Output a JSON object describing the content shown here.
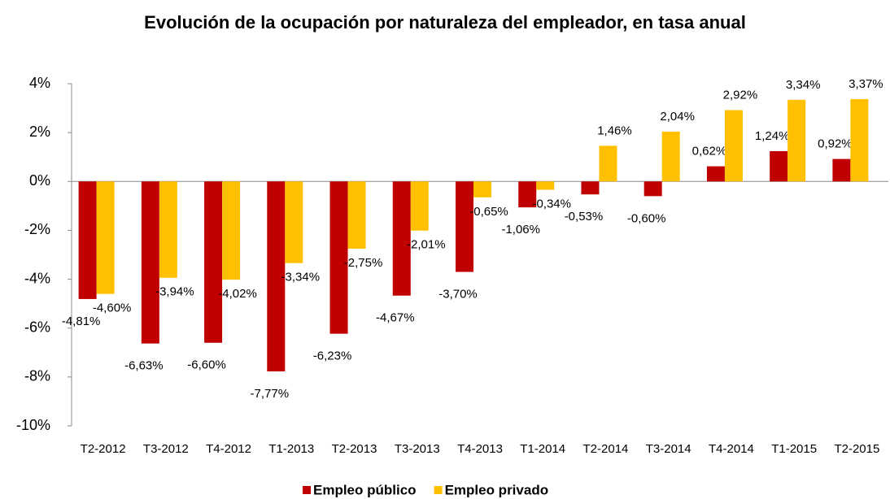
{
  "chart_data": {
    "type": "bar",
    "title": "Evolución de la ocupación por naturaleza del empleador, en tasa anual",
    "categories": [
      "T2-2012",
      "T3-2012",
      "T4-2012",
      "T1-2013",
      "T2-2013",
      "T3-2013",
      "T4-2013",
      "T1-2014",
      "T2-2014",
      "T3-2014",
      "T4-2014",
      "T1-2015",
      "T2-2015"
    ],
    "series": [
      {
        "name": "Empleo público",
        "color": "#c00000",
        "values": [
          -4.81,
          -6.63,
          -6.6,
          -7.77,
          -6.23,
          -4.67,
          -3.7,
          -1.06,
          -0.53,
          -0.6,
          0.62,
          1.24,
          0.92
        ],
        "value_labels": [
          "-4,81%",
          "-6,63%",
          "-6,60%",
          "-7,77%",
          "-6,23%",
          "-4,67%",
          "-3,70%",
          "-1,06%",
          "-0,53%",
          "-0,60%",
          "0,62%",
          "1,24%",
          "0,92%"
        ]
      },
      {
        "name": "Empleo privado",
        "color": "#ffc000",
        "values": [
          -4.6,
          -3.94,
          -4.02,
          -3.34,
          -2.75,
          -2.01,
          -0.65,
          -0.34,
          1.46,
          2.04,
          2.92,
          3.34,
          3.37
        ],
        "value_labels": [
          "-4,60%",
          "-3,94%",
          "-4,02%",
          "-3,34%",
          "-2,75%",
          "-2,01%",
          "-0,65%",
          "-0,34%",
          "1,46%",
          "2,04%",
          "2,92%",
          "3,34%",
          "3,37%"
        ]
      }
    ],
    "ylim": [
      -10,
      4
    ],
    "yticks": [
      {
        "value": -10,
        "label": "-10%"
      },
      {
        "value": -8,
        "label": "-8%"
      },
      {
        "value": -6,
        "label": "-6%"
      },
      {
        "value": -4,
        "label": "-4%"
      },
      {
        "value": -2,
        "label": "-2%"
      },
      {
        "value": 0,
        "label": "0%"
      },
      {
        "value": 2,
        "label": "2%"
      },
      {
        "value": 4,
        "label": "4%"
      }
    ],
    "grid": false,
    "legend": "bottom"
  }
}
